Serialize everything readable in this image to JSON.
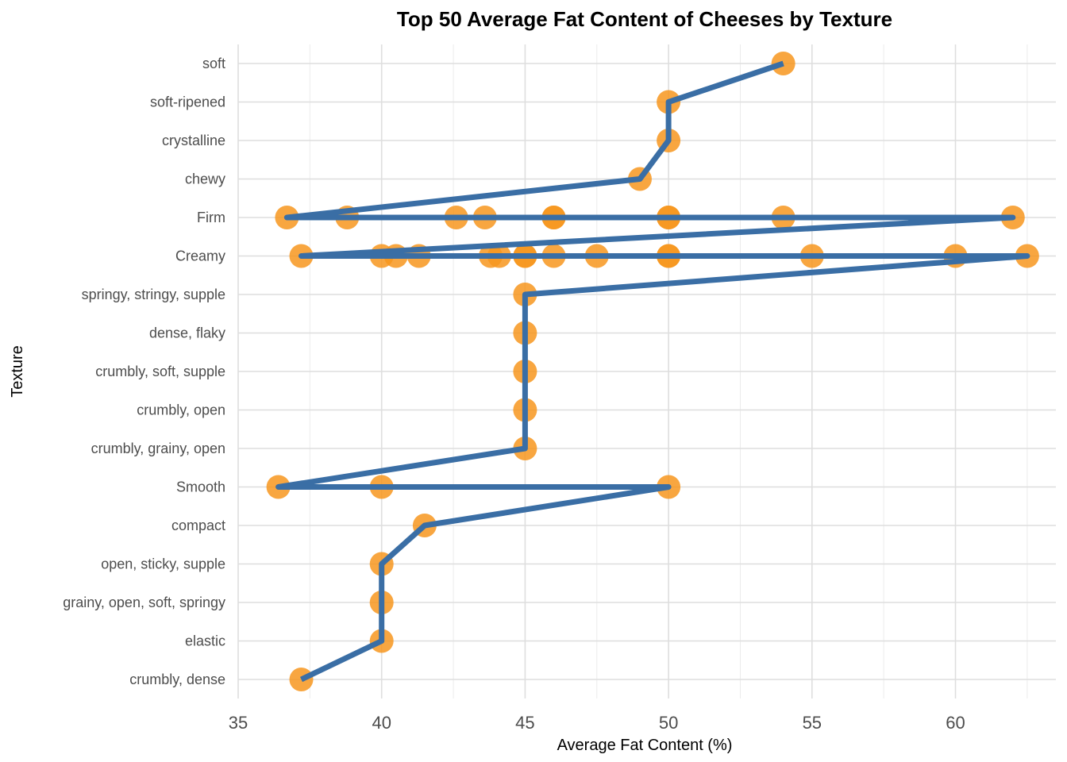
{
  "chart_data": {
    "type": "scatter",
    "title": "Top 50 Average Fat Content of Cheeses by Texture",
    "xlabel": "Average Fat Content (%)",
    "ylabel": "Texture",
    "xlim": [
      35,
      63.5
    ],
    "xticks": [
      35,
      40,
      45,
      50,
      55,
      60
    ],
    "grid": true,
    "legend": "none",
    "point_color": "#F7961E",
    "line_color": "#3A6EA5",
    "categories": [
      "soft",
      "soft-ripened",
      "crystalline",
      "chewy",
      "Firm",
      "Creamy",
      "springy, stringy, supple",
      "dense, flaky",
      "crumbly, soft, supple",
      "crumbly, open",
      "crumbly, grainy, open",
      "Smooth",
      "compact",
      "open, sticky, supple",
      "grainy, open, soft, springy",
      "elastic",
      "crumbly, dense"
    ],
    "points": [
      {
        "texture": "soft",
        "fat": 54
      },
      {
        "texture": "soft-ripened",
        "fat": 50
      },
      {
        "texture": "crystalline",
        "fat": 50
      },
      {
        "texture": "chewy",
        "fat": 49
      },
      {
        "texture": "Firm",
        "fat": 36.7
      },
      {
        "texture": "Firm",
        "fat": 38.8
      },
      {
        "texture": "Firm",
        "fat": 42.6
      },
      {
        "texture": "Firm",
        "fat": 43.6
      },
      {
        "texture": "Firm",
        "fat": 46
      },
      {
        "texture": "Firm",
        "fat": 46
      },
      {
        "texture": "Firm",
        "fat": 50
      },
      {
        "texture": "Firm",
        "fat": 50
      },
      {
        "texture": "Firm",
        "fat": 54
      },
      {
        "texture": "Firm",
        "fat": 62
      },
      {
        "texture": "Creamy",
        "fat": 37.2
      },
      {
        "texture": "Creamy",
        "fat": 40
      },
      {
        "texture": "Creamy",
        "fat": 40.5
      },
      {
        "texture": "Creamy",
        "fat": 41.3
      },
      {
        "texture": "Creamy",
        "fat": 43.8
      },
      {
        "texture": "Creamy",
        "fat": 44.1
      },
      {
        "texture": "Creamy",
        "fat": 45
      },
      {
        "texture": "Creamy",
        "fat": 45
      },
      {
        "texture": "Creamy",
        "fat": 46
      },
      {
        "texture": "Creamy",
        "fat": 47.5
      },
      {
        "texture": "Creamy",
        "fat": 50
      },
      {
        "texture": "Creamy",
        "fat": 50
      },
      {
        "texture": "Creamy",
        "fat": 55
      },
      {
        "texture": "Creamy",
        "fat": 60
      },
      {
        "texture": "Creamy",
        "fat": 62.5
      },
      {
        "texture": "springy, stringy, supple",
        "fat": 45
      },
      {
        "texture": "dense, flaky",
        "fat": 45
      },
      {
        "texture": "crumbly, soft, supple",
        "fat": 45
      },
      {
        "texture": "crumbly, open",
        "fat": 45
      },
      {
        "texture": "crumbly, grainy, open",
        "fat": 45
      },
      {
        "texture": "Smooth",
        "fat": 36.4
      },
      {
        "texture": "Smooth",
        "fat": 40
      },
      {
        "texture": "Smooth",
        "fat": 50
      },
      {
        "texture": "compact",
        "fat": 41.5
      },
      {
        "texture": "open, sticky, supple",
        "fat": 40
      },
      {
        "texture": "grainy, open, soft, springy",
        "fat": 40
      },
      {
        "texture": "elastic",
        "fat": 40
      },
      {
        "texture": "crumbly, dense",
        "fat": 37.2
      }
    ],
    "line_path": [
      {
        "texture": "soft",
        "fat": 54
      },
      {
        "texture": "soft-ripened",
        "fat": 50
      },
      {
        "texture": "crystalline",
        "fat": 50
      },
      {
        "texture": "chewy",
        "fat": 49
      },
      {
        "texture": "Firm",
        "fat": 36.7
      },
      {
        "texture": "Firm",
        "fat": 62
      },
      {
        "texture": "Creamy",
        "fat": 37.2
      },
      {
        "texture": "Creamy",
        "fat": 62.5
      },
      {
        "texture": "springy, stringy, supple",
        "fat": 45
      },
      {
        "texture": "dense, flaky",
        "fat": 45
      },
      {
        "texture": "crumbly, soft, supple",
        "fat": 45
      },
      {
        "texture": "crumbly, open",
        "fat": 45
      },
      {
        "texture": "crumbly, grainy, open",
        "fat": 45
      },
      {
        "texture": "Smooth",
        "fat": 36.4
      },
      {
        "texture": "Smooth",
        "fat": 50
      },
      {
        "texture": "compact",
        "fat": 41.5
      },
      {
        "texture": "open, sticky, supple",
        "fat": 40
      },
      {
        "texture": "grainy, open, soft, springy",
        "fat": 40
      },
      {
        "texture": "elastic",
        "fat": 40
      },
      {
        "texture": "crumbly, dense",
        "fat": 37.2
      }
    ]
  }
}
